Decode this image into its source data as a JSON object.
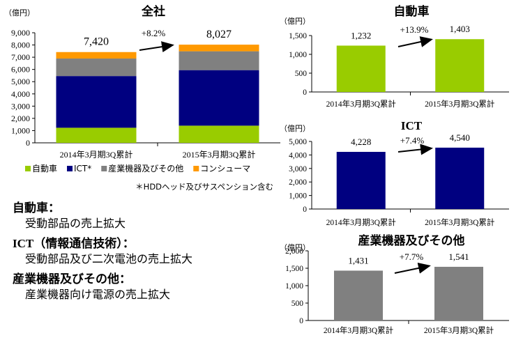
{
  "chart_data": [
    {
      "type": "bar",
      "stacked": true,
      "title": "全社",
      "unit": "（億円）",
      "categories": [
        "2014年3月期3Q累計",
        "2015年3月期3Q累計"
      ],
      "ylim": [
        0,
        9000
      ],
      "ticks": [
        "0",
        "1,000",
        "2,000",
        "3,000",
        "4,000",
        "5,000",
        "6,000",
        "7,000",
        "8,000",
        "9,000"
      ],
      "series": [
        {
          "name": "自動車",
          "color": "#99cc00",
          "values": [
            1232,
            1403
          ]
        },
        {
          "name": "ICT*",
          "color": "#000080",
          "values": [
            4228,
            4540
          ]
        },
        {
          "name": "産業機器及びその他",
          "color": "#808080",
          "values": [
            1431,
            1541
          ]
        },
        {
          "name": "コンシューマ",
          "color": "#ff9900",
          "values": [
            529,
            543
          ]
        }
      ],
      "totals": [
        "7,420",
        "8,027"
      ],
      "growth": "+8.2%",
      "footnote": "＊HDDヘッド及びサスペンション含む"
    },
    {
      "type": "bar",
      "title": "自動車",
      "unit": "（億円）",
      "color": "#99cc00",
      "categories": [
        "2014年3月期3Q累計",
        "2015年3月期3Q累計"
      ],
      "values": [
        1232,
        1403
      ],
      "value_labels": [
        "1,232",
        "1,403"
      ],
      "ylim": [
        0,
        1500
      ],
      "ticks": [
        "0",
        "500",
        "1,000",
        "1,500"
      ],
      "growth": "+13.9%"
    },
    {
      "type": "bar",
      "title": "ICT",
      "unit": "（億円）",
      "color": "#000080",
      "categories": [
        "2014年3月期3Q累計",
        "2015年3月期3Q累計"
      ],
      "values": [
        4228,
        4540
      ],
      "value_labels": [
        "4,228",
        "4,540"
      ],
      "ylim": [
        0,
        5000
      ],
      "ticks": [
        "0",
        "1,000",
        "2,000",
        "3,000",
        "4,000",
        "5,000"
      ],
      "growth": "+7.4%"
    },
    {
      "type": "bar",
      "title": "産業機器及びその他",
      "unit": "（億円）",
      "color": "#808080",
      "categories": [
        "2014年3月期3Q累計",
        "2015年3月期3Q累計"
      ],
      "values": [
        1431,
        1541
      ],
      "value_labels": [
        "1,431",
        "1,541"
      ],
      "ylim": [
        0,
        2000
      ],
      "ticks": [
        "0",
        "500",
        "1,000",
        "1,500",
        "2,000"
      ],
      "growth": "+7.7%"
    }
  ],
  "notes": [
    {
      "head": "自動車：",
      "body": "受動部品の売上拡大"
    },
    {
      "head": "ICT（情報通信技術）：",
      "body": "受動部品及び二次電池の売上拡大"
    },
    {
      "head": "産業機器及びその他：",
      "body": "産業機器向け電源の売上拡大"
    }
  ]
}
